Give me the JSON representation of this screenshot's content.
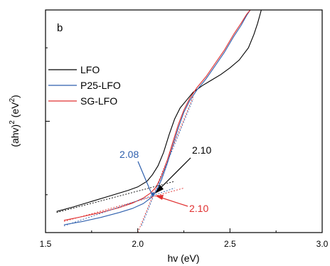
{
  "chart_data": {
    "type": "line",
    "panel_label": "b",
    "xlabel": "hv (eV)",
    "ylabel_base": "(ahv)",
    "ylabel_sup1": "2",
    "ylabel_mid": " (eV",
    "ylabel_sup2": "2",
    "ylabel_end": ")",
    "xlim": [
      1.5,
      3.0
    ],
    "ylim": [
      0,
      10
    ],
    "x_ticks": [
      "1.5",
      "2.0",
      "2.5",
      "3.0"
    ],
    "legend_position": "upper-left",
    "series": [
      {
        "name": "LFO",
        "color": "#000000",
        "points": [
          [
            1.56,
            0.95
          ],
          [
            1.65,
            1.15
          ],
          [
            1.75,
            1.4
          ],
          [
            1.85,
            1.65
          ],
          [
            1.95,
            1.9
          ],
          [
            2.0,
            2.05
          ],
          [
            2.05,
            2.3
          ],
          [
            2.08,
            2.6
          ],
          [
            2.11,
            3.0
          ],
          [
            2.14,
            3.6
          ],
          [
            2.17,
            4.4
          ],
          [
            2.2,
            5.1
          ],
          [
            2.23,
            5.6
          ],
          [
            2.26,
            5.9
          ],
          [
            2.3,
            6.3
          ],
          [
            2.35,
            6.6
          ],
          [
            2.4,
            6.85
          ],
          [
            2.45,
            7.1
          ],
          [
            2.5,
            7.4
          ],
          [
            2.55,
            7.75
          ],
          [
            2.6,
            8.3
          ],
          [
            2.63,
            8.9
          ],
          [
            2.65,
            9.4
          ],
          [
            2.67,
            10.0
          ]
        ],
        "fit_points": [
          [
            1.56,
            0.9
          ],
          [
            2.2,
            2.3
          ]
        ]
      },
      {
        "name": "P25-LFO",
        "color": "#2e5fad",
        "points": [
          [
            1.6,
            0.35
          ],
          [
            1.7,
            0.5
          ],
          [
            1.8,
            0.68
          ],
          [
            1.9,
            0.9
          ],
          [
            1.97,
            1.08
          ],
          [
            2.03,
            1.3
          ],
          [
            2.07,
            1.55
          ],
          [
            2.1,
            1.85
          ],
          [
            2.13,
            2.4
          ],
          [
            2.16,
            3.1
          ],
          [
            2.19,
            3.9
          ],
          [
            2.22,
            4.7
          ],
          [
            2.25,
            5.4
          ],
          [
            2.28,
            5.9
          ],
          [
            2.32,
            6.4
          ],
          [
            2.37,
            6.9
          ],
          [
            2.42,
            7.5
          ],
          [
            2.47,
            8.1
          ],
          [
            2.52,
            8.8
          ],
          [
            2.56,
            9.3
          ],
          [
            2.59,
            9.75
          ],
          [
            2.61,
            10.0
          ]
        ],
        "fit_points": [
          [
            1.6,
            0.3
          ],
          [
            2.2,
            2.0
          ]
        ],
        "steep_fit": [
          [
            2.02,
            0.3
          ],
          [
            2.3,
            6.0
          ]
        ]
      },
      {
        "name": "SG-LFO",
        "color": "#e03030",
        "points": [
          [
            1.6,
            0.55
          ],
          [
            1.7,
            0.72
          ],
          [
            1.8,
            0.9
          ],
          [
            1.9,
            1.12
          ],
          [
            1.97,
            1.32
          ],
          [
            2.03,
            1.55
          ],
          [
            2.07,
            1.78
          ],
          [
            2.1,
            2.05
          ],
          [
            2.13,
            2.55
          ],
          [
            2.16,
            3.25
          ],
          [
            2.19,
            4.05
          ],
          [
            2.22,
            4.85
          ],
          [
            2.25,
            5.5
          ],
          [
            2.28,
            6.0
          ],
          [
            2.32,
            6.5
          ],
          [
            2.37,
            7.0
          ],
          [
            2.42,
            7.6
          ],
          [
            2.47,
            8.2
          ],
          [
            2.52,
            8.9
          ],
          [
            2.56,
            9.4
          ],
          [
            2.59,
            9.8
          ],
          [
            2.61,
            10.0
          ]
        ],
        "fit_points": [
          [
            1.6,
            0.5
          ],
          [
            2.25,
            2.0
          ]
        ],
        "steep_fit": [
          [
            2.0,
            0.0
          ],
          [
            2.3,
            6.1
          ]
        ]
      }
    ],
    "annotations": [
      {
        "text": "2.08",
        "color": "#2e5fad",
        "x": 2.08
      },
      {
        "text": "2.10",
        "color": "#000000",
        "x": 2.1
      },
      {
        "text": "2.10",
        "color": "#e03030",
        "x": 2.1
      }
    ]
  }
}
